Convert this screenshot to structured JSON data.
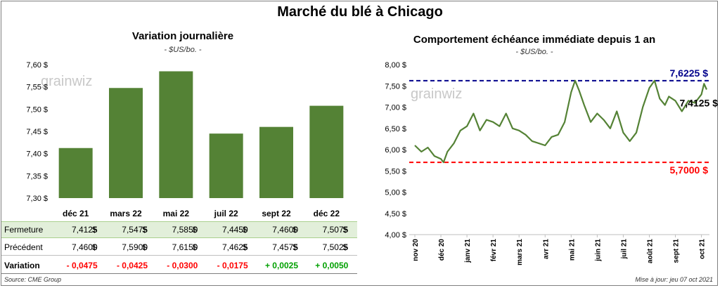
{
  "title": "Marché du blé à Chicago",
  "left_panel": {
    "title": "Variation journalière",
    "subtitle": "- $US/bo. -"
  },
  "right_panel": {
    "title": "Comportement  échéance immédiate depuis 1 an",
    "subtitle": "- $US/bo. -"
  },
  "watermark": "grainwiz",
  "chart_data": [
    {
      "type": "bar",
      "title": "Variation journalière",
      "ylabel": "$US/bo.",
      "categories": [
        "déc 21",
        "mars 22",
        "mai 22",
        "juil 22",
        "sept 22",
        "déc 22"
      ],
      "values": [
        7.4125,
        7.5475,
        7.585,
        7.445,
        7.46,
        7.5075
      ],
      "ylim": [
        7.3,
        7.6
      ],
      "yticks": [
        "7,30 $",
        "7,35 $",
        "7,40 $",
        "7,45 $",
        "7,50 $",
        "7,55 $",
        "7,60 $"
      ],
      "color": "#548235",
      "grid": false
    },
    {
      "type": "line",
      "title": "Comportement  échéance immédiate depuis 1 an",
      "ylabel": "$US/bo.",
      "ylim": [
        4.0,
        8.0
      ],
      "yticks": [
        "4,00 $",
        "4,50 $",
        "5,00 $",
        "5,50 $",
        "6,00 $",
        "6,50 $",
        "7,00 $",
        "7,50 $",
        "8,00 $"
      ],
      "xticks": [
        "nov 20",
        "déc 20",
        "janv 21",
        "févr 21",
        "mars 21",
        "avr 21",
        "mai 21",
        "juin 21",
        "juil 21",
        "août 21",
        "sept 21",
        "oct 21"
      ],
      "color": "#548235",
      "grid": false,
      "x_months": [
        0,
        0.25,
        0.5,
        0.75,
        1,
        1.1,
        1.25,
        1.5,
        1.75,
        2,
        2.25,
        2.5,
        2.75,
        3,
        3.25,
        3.5,
        3.75,
        4,
        4.25,
        4.5,
        4.75,
        5,
        5.25,
        5.5,
        5.75,
        6,
        6.15,
        6.3,
        6.5,
        6.75,
        7,
        7.25,
        7.5,
        7.75,
        8,
        8.25,
        8.5,
        8.75,
        9,
        9.2,
        9.4,
        9.6,
        9.75,
        10,
        10.25,
        10.5,
        10.75,
        11,
        11.1,
        11.2
      ],
      "values": [
        6.1,
        5.95,
        6.05,
        5.85,
        5.78,
        5.7,
        5.95,
        6.15,
        6.45,
        6.55,
        6.85,
        6.45,
        6.7,
        6.65,
        6.55,
        6.85,
        6.5,
        6.45,
        6.35,
        6.2,
        6.15,
        6.1,
        6.3,
        6.35,
        6.65,
        7.35,
        7.6225,
        7.4,
        7.05,
        6.65,
        6.85,
        6.7,
        6.5,
        6.9,
        6.4,
        6.2,
        6.4,
        7.0,
        7.45,
        7.6225,
        7.2,
        7.05,
        7.25,
        7.15,
        6.9,
        7.15,
        7.1,
        7.3,
        7.55,
        7.4125
      ],
      "annotations": [
        {
          "label": "7,6225 $",
          "value": 7.6225,
          "color": "#00008b",
          "style": "dashed"
        },
        {
          "label": "5,7000 $",
          "value": 5.7,
          "color": "#ff0000",
          "style": "dashed"
        },
        {
          "label": "7,4125 $",
          "value": 7.4125,
          "color": "#000000",
          "style": "point-label"
        }
      ]
    }
  ],
  "table": {
    "rows": [
      {
        "label": "Fermeture",
        "values": [
          "7,4125",
          "7,5475",
          "7,5850",
          "7,4450",
          "7,4600",
          "7,5075"
        ],
        "currency": "$"
      },
      {
        "label": "Précédent",
        "values": [
          "7,4600",
          "7,5900",
          "7,6150",
          "7,4625",
          "7,4575",
          "7,5025"
        ],
        "currency": "$"
      },
      {
        "label": "Variation",
        "values": [
          "- 0,0475",
          "- 0,0425",
          "- 0,0300",
          "- 0,0175",
          "+ 0,0025",
          "+ 0,0050"
        ],
        "currency": ""
      }
    ]
  },
  "footer": {
    "source": "Source: CME Group",
    "updated": "Mise à jour: jeu 07 oct 2021"
  }
}
